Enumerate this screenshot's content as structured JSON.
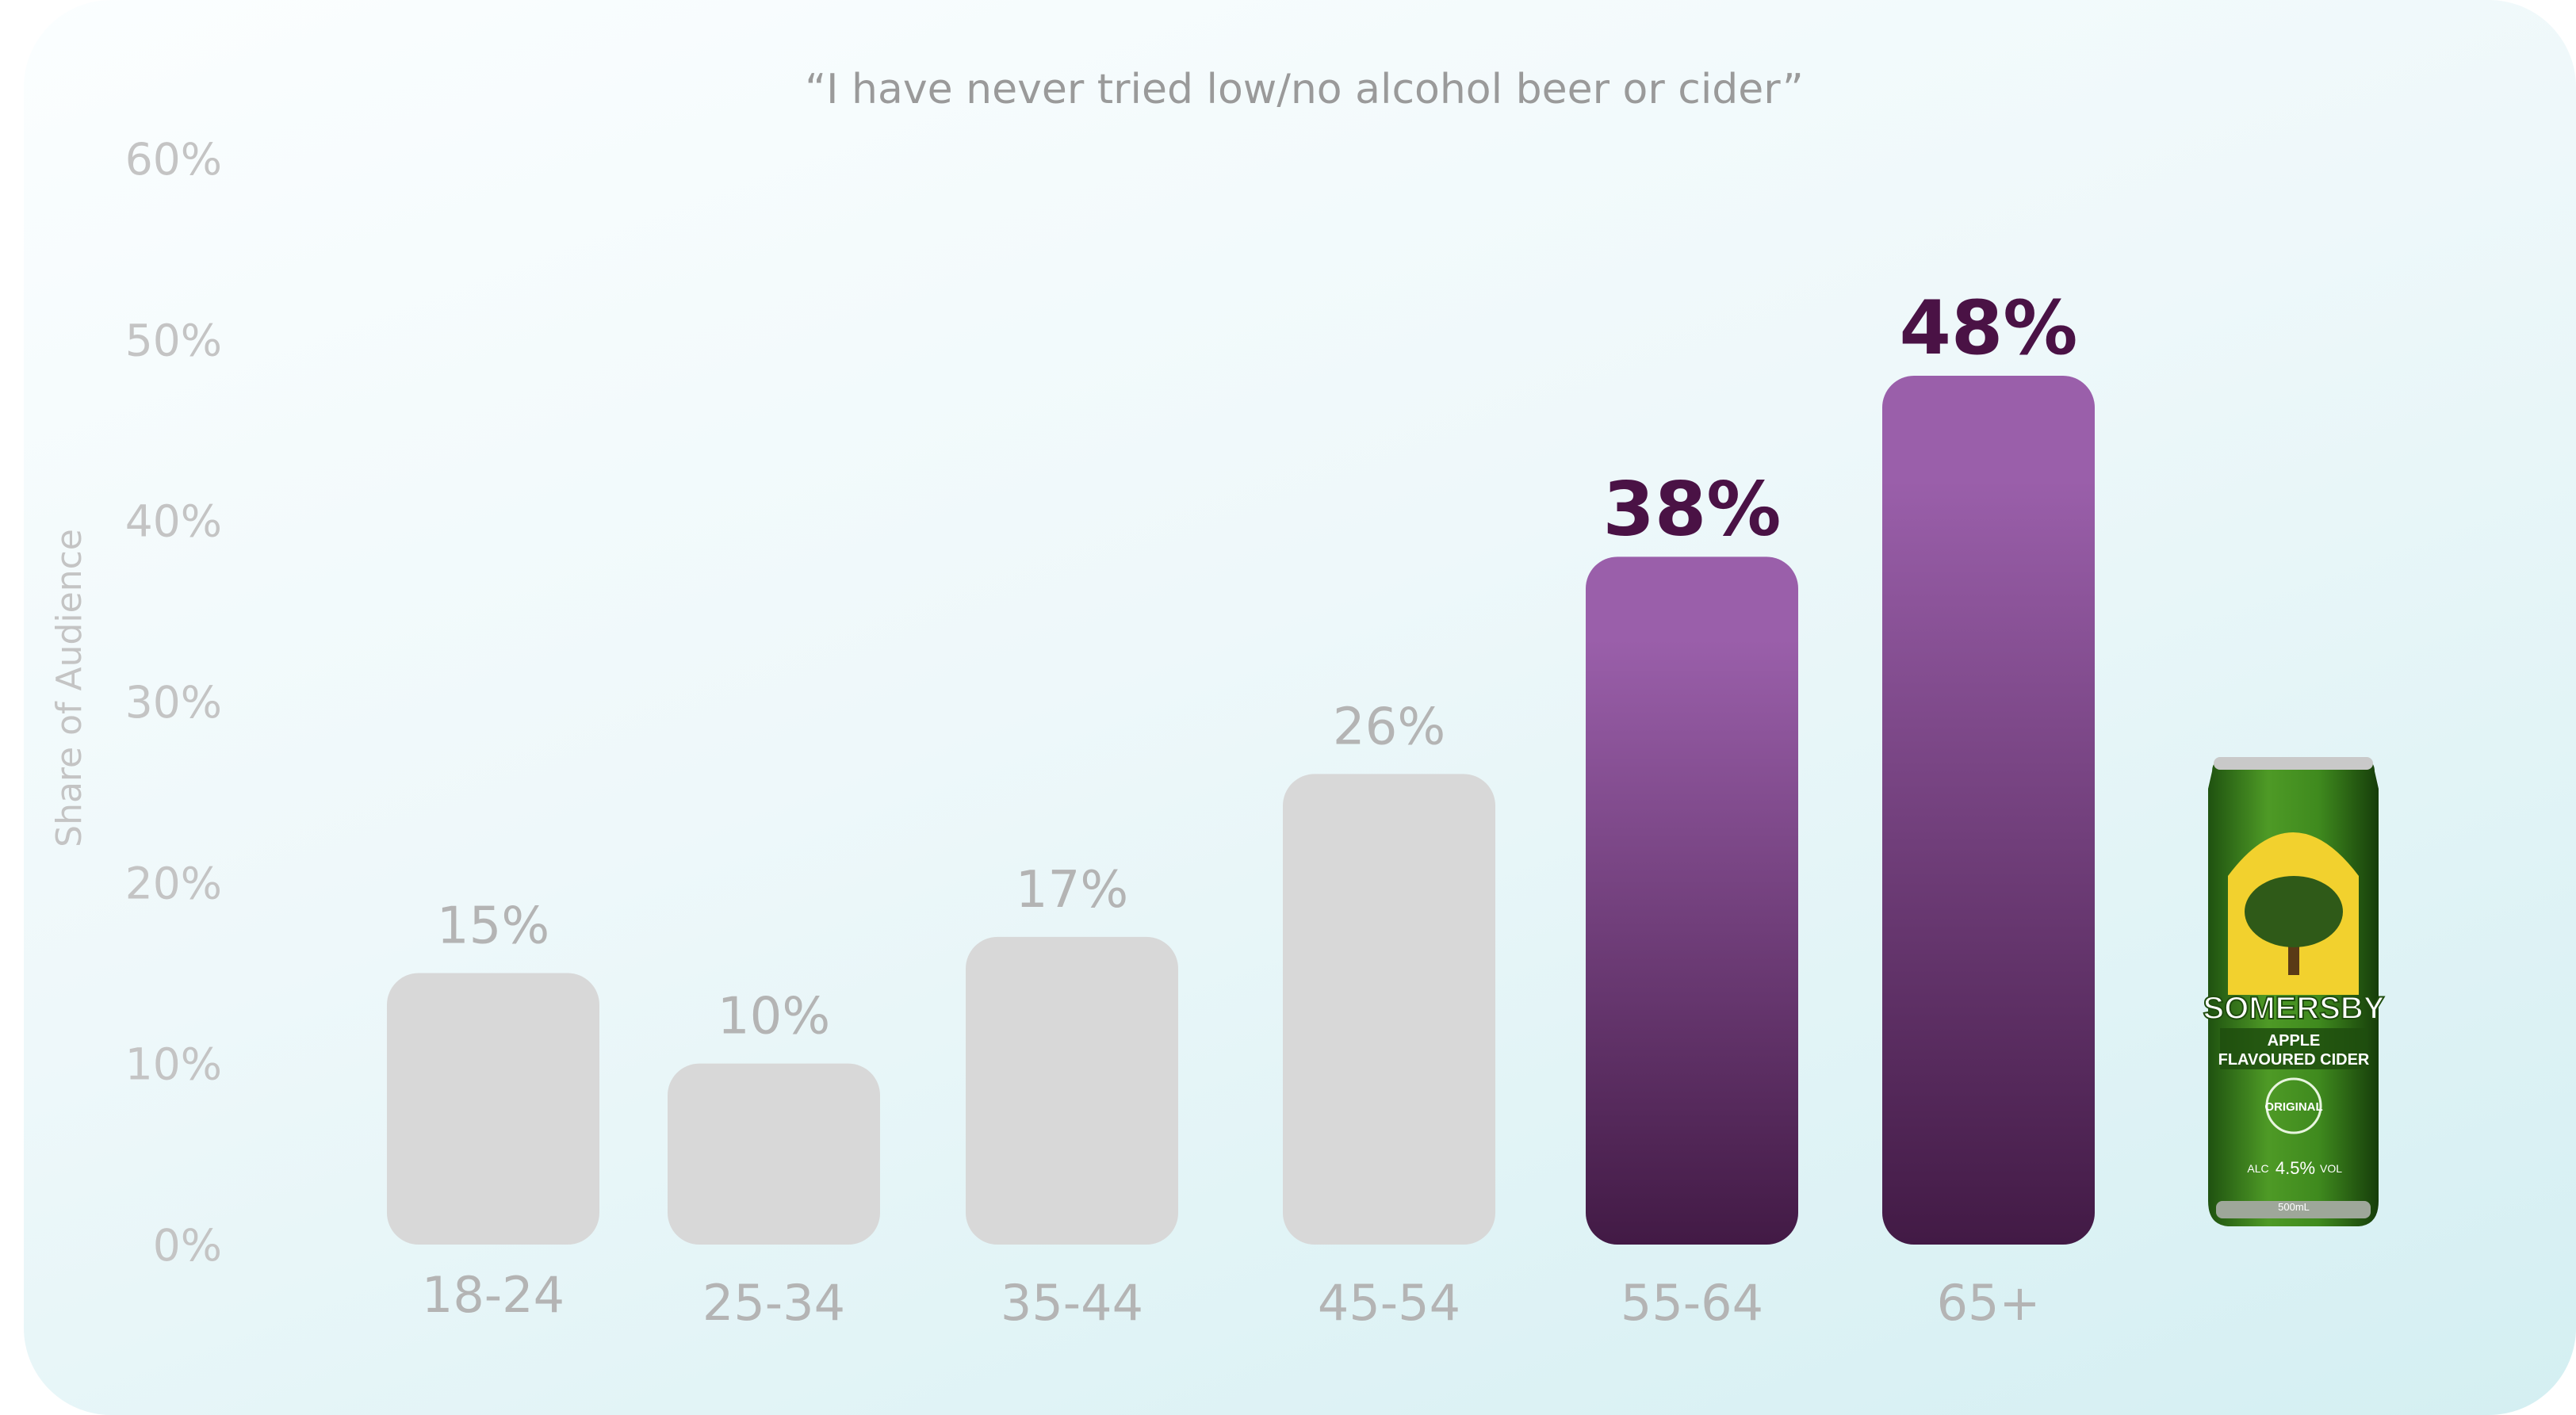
{
  "chart_data": {
    "type": "bar",
    "title": "“I have never tried low/no alcohol beer or cider”",
    "ylabel": "Share of Audience",
    "xlabel": "",
    "categories": [
      "18-24",
      "25-34",
      "35-44",
      "45-54",
      "55-64",
      "65+"
    ],
    "values": [
      15,
      10,
      17,
      26,
      38,
      48
    ],
    "data_labels": [
      "15%",
      "10%",
      "17%",
      "26%",
      "38%",
      "48%"
    ],
    "highlighted": [
      false,
      false,
      false,
      false,
      true,
      true
    ],
    "ylim": [
      0,
      60
    ],
    "yticks": [
      "0%",
      "10%",
      "20%",
      "30%",
      "40%",
      "50%",
      "60%"
    ],
    "grid": false,
    "colors": {
      "default_bar": "#d8d8d8",
      "highlight_top": "#9a5faa",
      "highlight_bottom": "#421a45",
      "highlight_label": "#4a1245"
    }
  },
  "product": {
    "icon": "somersby-cider-can",
    "brand": "SOMERSBY",
    "line1": "APPLE",
    "line2": "FLAVOURED CIDER",
    "badge": "ORIGINAL",
    "abv": "4.5%",
    "abv_prefix": "ALC",
    "abv_suffix": "VOL",
    "volume": "500mL",
    "colors": {
      "can": "#3f8a1e",
      "can_dark": "#1d4d0e",
      "label": "#f2d12e",
      "tree": "#2f5a18"
    }
  }
}
